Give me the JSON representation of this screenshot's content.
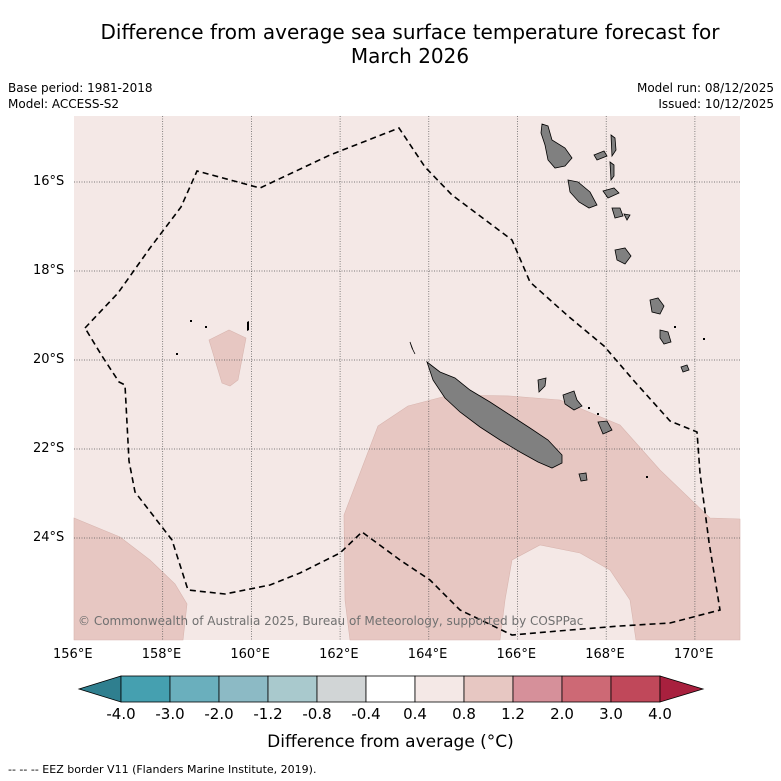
{
  "header": {
    "title_line1": "Difference from average sea surface temperature forecast for",
    "title_line2": "March 2026",
    "base_period": "Base period: 1981-2018",
    "model": "Model: ACCESS-S2",
    "model_run": "Model run: 08/12/2025",
    "issued": "Issued: 10/12/2025"
  },
  "map": {
    "lon_ticks": [
      "156°E",
      "158°E",
      "160°E",
      "162°E",
      "164°E",
      "166°E",
      "168°E",
      "170°E"
    ],
    "lat_ticks": [
      "16°S",
      "18°S",
      "20°S",
      "22°S",
      "24°S"
    ],
    "copyright": "© Commonwealth of Australia 2025, Bureau of Meteorology, supported by COSPPac",
    "colors": {
      "ocean_base": "#f4e8e6",
      "anomaly_0_8_1_2": "#e7c7c2",
      "land": "#808080",
      "eez_line": "#000000"
    }
  },
  "colorbar": {
    "labels": [
      "-4.0",
      "-3.0",
      "-2.0",
      "-1.2",
      "-0.8",
      "-0.4",
      "0.4",
      "0.8",
      "1.2",
      "2.0",
      "3.0",
      "4.0"
    ],
    "colors": [
      "#2f7f8f",
      "#45a0b0",
      "#6aafbd",
      "#8cbac5",
      "#a9c9cd",
      "#d1d5d6",
      "#ffffff",
      "#f4e8e6",
      "#e7c7c2",
      "#d6909a",
      "#cd6975",
      "#c0485a",
      "#a8203e"
    ],
    "title": "Difference from average (°C)"
  },
  "footnote": "-- -- -- EEZ border V11 (Flanders Marine Institute, 2019)."
}
